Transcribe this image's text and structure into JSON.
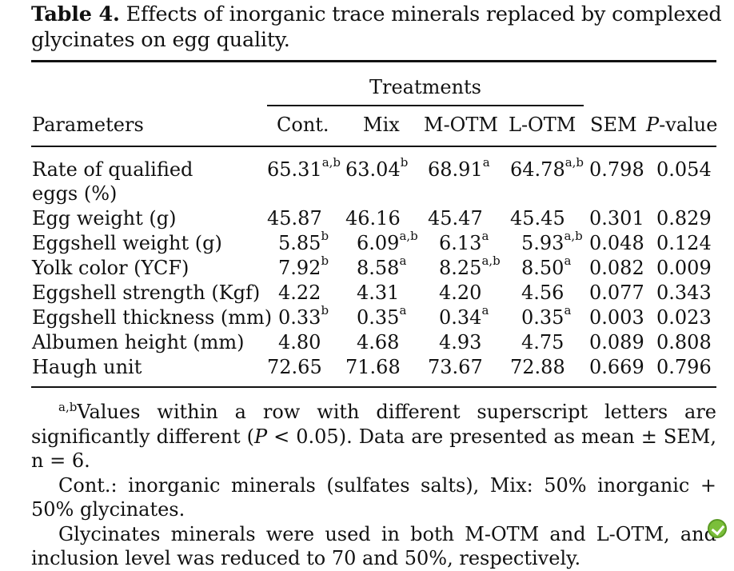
{
  "caption": {
    "label": "Table 4.",
    "text": "Effects of inorganic trace minerals replaced by complexed glycinates on egg quality."
  },
  "header": {
    "treatments": "Treatments",
    "parameters": "Parameters",
    "cont": "Cont.",
    "mix": "Mix",
    "motm": "M-OTM",
    "lotm": "L-OTM",
    "sem": "SEM",
    "p_italic": "P",
    "p_rest": "-value"
  },
  "rows": [
    {
      "param": "Rate of qualified",
      "param2": "eggs (%)",
      "cont": "65.31",
      "cont_sup": "a,b",
      "mix": "63.04",
      "mix_sup": "b",
      "motm": "68.91",
      "motm_sup": "a",
      "lotm": "64.78",
      "lotm_sup": "a,b",
      "sem": "0.798",
      "p": "0.054"
    },
    {
      "param": "Egg weight (g)",
      "cont": "45.87",
      "cont_sup": "",
      "mix": "46.16",
      "mix_sup": "",
      "motm": "45.47",
      "motm_sup": "",
      "lotm": "45.45",
      "lotm_sup": "",
      "sem": "0.301",
      "p": "0.829"
    },
    {
      "param": "Eggshell weight (g)",
      "cont": "5.85",
      "cont_sup": "b",
      "mix": "6.09",
      "mix_sup": "a,b",
      "motm": "6.13",
      "motm_sup": "a",
      "lotm": "5.93",
      "lotm_sup": "a,b",
      "sem": "0.048",
      "p": "0.124"
    },
    {
      "param": "Yolk color (YCF)",
      "cont": "7.92",
      "cont_sup": "b",
      "mix": "8.58",
      "mix_sup": "a",
      "motm": "8.25",
      "motm_sup": "a,b",
      "lotm": "8.50",
      "lotm_sup": "a",
      "sem": "0.082",
      "p": "0.009"
    },
    {
      "param": "Eggshell strength (Kgf)",
      "cont": "4.22",
      "cont_sup": "",
      "mix": "4.31",
      "mix_sup": "",
      "motm": "4.20",
      "motm_sup": "",
      "lotm": "4.56",
      "lotm_sup": "",
      "sem": "0.077",
      "p": "0.343"
    },
    {
      "param": "Eggshell thickness (mm)",
      "cont": "0.33",
      "cont_sup": "b",
      "mix": "0.35",
      "mix_sup": "a",
      "motm": "0.34",
      "motm_sup": "a",
      "lotm": "0.35",
      "lotm_sup": "a",
      "sem": "0.003",
      "p": "0.023"
    },
    {
      "param": "Albumen height (mm)",
      "cont": "4.80",
      "cont_sup": "",
      "mix": "4.68",
      "mix_sup": "",
      "motm": "4.93",
      "motm_sup": "",
      "lotm": "4.75",
      "lotm_sup": "",
      "sem": "0.089",
      "p": "0.808"
    },
    {
      "param": "Haugh unit",
      "cont": "72.65",
      "cont_sup": "",
      "mix": "71.68",
      "mix_sup": "",
      "motm": "73.67",
      "motm_sup": "",
      "lotm": "72.88",
      "lotm_sup": "",
      "sem": "0.669",
      "p": "0.796"
    }
  ],
  "notes": {
    "n1_sup": "a,b",
    "n1_a": "Values within a row with different superscript letters are significantly different (",
    "n1_p": "P",
    "n1_b": " < 0.05). Data are presented as mean ± SEM, n = 6.",
    "n2": "Cont.: inorganic minerals (sulfates salts), Mix: 50% inorganic + 50% glycinates.",
    "n3": "Glycinates minerals were used in both M-OTM and L-OTM, and inclusion level was reduced to 70 and 50%, respectively."
  },
  "badge_icon": "check-leaf-icon",
  "badge_color": "#7bbf3a"
}
